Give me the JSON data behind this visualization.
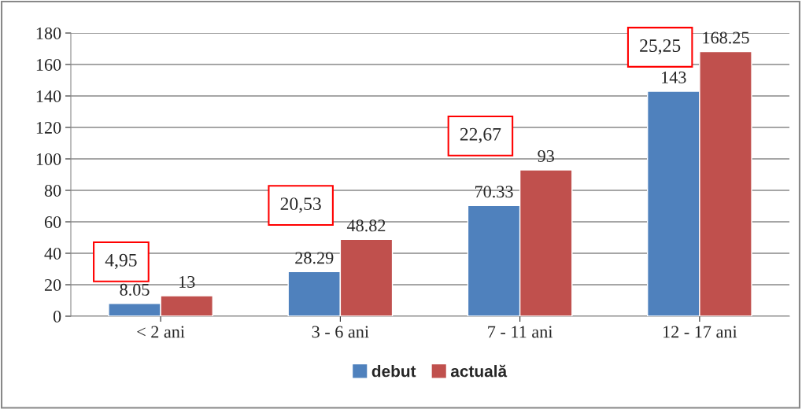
{
  "chart_data": {
    "type": "bar",
    "categories": [
      "< 2 ani",
      "3 - 6 ani",
      "7 - 11 ani",
      "12 - 17 ani"
    ],
    "series": [
      {
        "name": "debut",
        "color": "#4f81bd",
        "values": [
          8.05,
          28.29,
          70.33,
          143
        ],
        "value_labels": [
          "8.05",
          "28.29",
          "70.33",
          "143"
        ]
      },
      {
        "name": "actuală",
        "color": "#c0504d",
        "values": [
          13,
          48.82,
          93,
          168.25
        ],
        "value_labels": [
          "13",
          "48.82",
          "93",
          "168.25"
        ]
      }
    ],
    "annotations": [
      "4,95",
      "20,53",
      "22,67",
      "25,25"
    ],
    "ylim": [
      0,
      180
    ],
    "yticks": [
      0,
      20,
      40,
      60,
      80,
      100,
      120,
      140,
      160,
      180
    ],
    "grid": "y",
    "legend": "bottom"
  }
}
